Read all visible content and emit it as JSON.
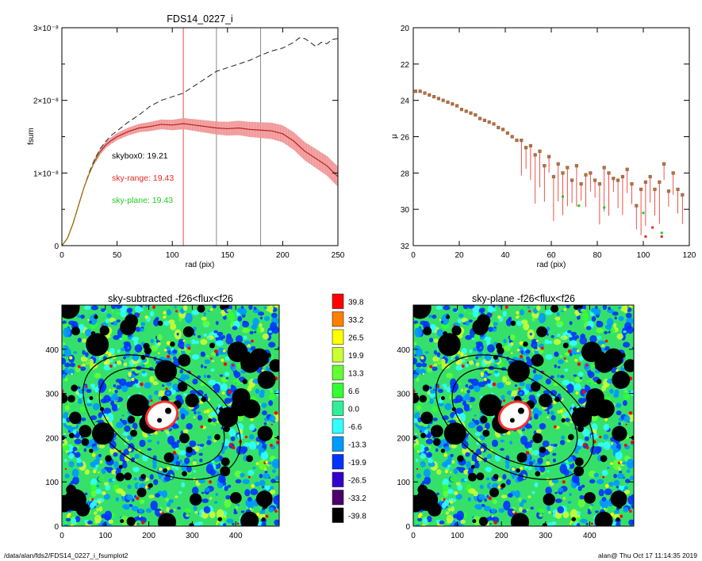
{
  "footer": {
    "path": "/data/alan/fds2/FDS14_0227_i_fsumplot2",
    "stamp": "alan@  Thu Oct 17 11:14:35 2019"
  },
  "colors": {
    "profile": "#b22222",
    "error_band": "#f4a3a3",
    "sky_range": "#e8281e",
    "sky_plane": "#22cc22",
    "marker_orange": "#d2691e",
    "marker_gray": "#707070"
  },
  "chart_data": [
    {
      "id": "fsum",
      "type": "line",
      "title": "FDS14_0227_i",
      "xlabel": "rad (pix)",
      "ylabel": "fsum",
      "xlim": [
        0,
        250
      ],
      "ylim": [
        0,
        3e-08
      ],
      "xticks": [
        "0",
        "50",
        "100",
        "150",
        "200",
        "250"
      ],
      "yticks": [
        "0",
        "1×10⁻⁸",
        "2×10⁻⁸",
        "3×10⁻⁸"
      ],
      "vlines": [
        {
          "x": 110,
          "color": "red"
        },
        {
          "x": 140,
          "color": "gray"
        },
        {
          "x": 180,
          "color": "gray"
        }
      ],
      "annotations": [
        {
          "text": "skybox0: 19.21",
          "color": "black"
        },
        {
          "text": "sky-range: 19.43",
          "color": "red"
        },
        {
          "text": "sky-plane: 19.43",
          "color": "green"
        }
      ],
      "series": [
        {
          "style": "dashed",
          "x": [
            0,
            5,
            10,
            15,
            20,
            25,
            30,
            35,
            40,
            45,
            50,
            60,
            70,
            80,
            90,
            100,
            110,
            120,
            130,
            140,
            150,
            160,
            170,
            180,
            190,
            200,
            210,
            215,
            220,
            225,
            230,
            235,
            240,
            245,
            250
          ],
          "y": [
            0,
            1e-09,
            3e-09,
            5.5e-09,
            8e-09,
            1.02e-08,
            1.2e-08,
            1.34e-08,
            1.44e-08,
            1.52e-08,
            1.58e-08,
            1.7e-08,
            1.8e-08,
            1.92e-08,
            2e-08,
            2.05e-08,
            2.1e-08,
            2.2e-08,
            2.3e-08,
            2.4e-08,
            2.45e-08,
            2.5e-08,
            2.55e-08,
            2.62e-08,
            2.68e-08,
            2.72e-08,
            2.8e-08,
            2.86e-08,
            2.85e-08,
            2.8e-08,
            2.74e-08,
            2.8e-08,
            2.78e-08,
            2.84e-08,
            2.85e-08
          ]
        },
        {
          "style": "solid",
          "x": [
            0,
            5,
            10,
            15,
            20,
            25,
            30,
            35,
            40,
            45,
            50,
            60,
            70,
            80,
            90,
            100,
            110,
            120,
            130,
            140,
            150,
            160,
            170,
            180,
            190,
            200,
            210,
            220,
            230,
            240,
            250
          ],
          "y": [
            0,
            1e-09,
            3e-09,
            5.5e-09,
            8e-09,
            1e-08,
            1.17e-08,
            1.3e-08,
            1.39e-08,
            1.45e-08,
            1.5e-08,
            1.57e-08,
            1.62e-08,
            1.64e-08,
            1.67e-08,
            1.66e-08,
            1.68e-08,
            1.66e-08,
            1.64e-08,
            1.62e-08,
            1.61e-08,
            1.62e-08,
            1.6e-08,
            1.59e-08,
            1.58e-08,
            1.54e-08,
            1.44e-08,
            1.3e-08,
            1.2e-08,
            1.1e-08,
            9.5e-09
          ]
        }
      ]
    },
    {
      "id": "mu",
      "type": "scatter",
      "xlabel": "rad (pix)",
      "ylabel": "μ",
      "xlim": [
        0,
        120
      ],
      "ylim": [
        32,
        20
      ],
      "xticks": [
        "0",
        "20",
        "40",
        "60",
        "80",
        "100",
        "120"
      ],
      "yticks": [
        "20",
        "22",
        "24",
        "26",
        "28",
        "30",
        "32"
      ],
      "points": [
        [
          1,
          23.5
        ],
        [
          3,
          23.5
        ],
        [
          5,
          23.6
        ],
        [
          7,
          23.7
        ],
        [
          9,
          23.8
        ],
        [
          11,
          23.9
        ],
        [
          13,
          24.0
        ],
        [
          15,
          24.1
        ],
        [
          17,
          24.2
        ],
        [
          19,
          24.3
        ],
        [
          21,
          24.5
        ],
        [
          23,
          24.6
        ],
        [
          25,
          24.7
        ],
        [
          27,
          24.8
        ],
        [
          29,
          25.0
        ],
        [
          31,
          25.1
        ],
        [
          33,
          25.2
        ],
        [
          35,
          25.3
        ],
        [
          37,
          25.5
        ],
        [
          39,
          25.6
        ],
        [
          41,
          25.8
        ],
        [
          43,
          26.0
        ],
        [
          45,
          26.2
        ],
        [
          47,
          26.2
        ],
        [
          49,
          26.6
        ],
        [
          51,
          26.5
        ],
        [
          53,
          27.0
        ],
        [
          55,
          26.8
        ],
        [
          57,
          27.6
        ],
        [
          59,
          27.1
        ],
        [
          61,
          28.2
        ],
        [
          63,
          27.5
        ],
        [
          65,
          28.0
        ],
        [
          67,
          27.7
        ],
        [
          69,
          28.4
        ],
        [
          71,
          27.6
        ],
        [
          73,
          28.6
        ],
        [
          75,
          28.1
        ],
        [
          77,
          28.0
        ],
        [
          79,
          28.4
        ],
        [
          81,
          28.6
        ],
        [
          83,
          27.7
        ],
        [
          85,
          28.0
        ],
        [
          87,
          28.3
        ],
        [
          89,
          28.4
        ],
        [
          91,
          28.2
        ],
        [
          93,
          27.8
        ],
        [
          95,
          28.6
        ],
        [
          97,
          29.8
        ],
        [
          99,
          28.9
        ],
        [
          101,
          28.5
        ],
        [
          103,
          28.2
        ],
        [
          105,
          28.9
        ],
        [
          107,
          28.5
        ],
        [
          109,
          27.5
        ],
        [
          111,
          29.0
        ],
        [
          113,
          28.0
        ],
        [
          115,
          28.9
        ],
        [
          117,
          29.2
        ]
      ],
      "points_green": [
        [
          65,
          29.3
        ],
        [
          72,
          29.8
        ],
        [
          83,
          29.9
        ],
        [
          100,
          30.2
        ],
        [
          108,
          31.3
        ]
      ],
      "points_red": [
        [
          101,
          31.5
        ],
        [
          104,
          31.0
        ],
        [
          108,
          31.5
        ]
      ]
    },
    {
      "id": "sky-subtracted",
      "type": "heatmap",
      "title": "sky-subtracted -f26<flux<f26",
      "xlim": [
        0,
        500
      ],
      "ylim": [
        0,
        500
      ],
      "xticks": [
        "0",
        "100",
        "200",
        "300",
        "400"
      ],
      "yticks": [
        "0",
        "100",
        "200",
        "300",
        "400"
      ]
    },
    {
      "id": "sky-plane",
      "type": "heatmap",
      "title": "sky-plane -f26<flux<f26",
      "xlim": [
        0,
        500
      ],
      "ylim": [
        0,
        500
      ],
      "xticks": [
        "0",
        "100",
        "200",
        "300",
        "400"
      ],
      "yticks": [
        "0",
        "100",
        "200",
        "300",
        "400"
      ]
    }
  ],
  "colorbar": {
    "levels": [
      "39.8",
      "33.2",
      "26.5",
      "19.9",
      "13.3",
      "6.6",
      "0.0",
      "-6.6",
      "-13.3",
      "-19.9",
      "-26.5",
      "-33.2",
      "-39.8"
    ],
    "colors": [
      "#ff0000",
      "#ff8000",
      "#ffff00",
      "#ccff33",
      "#66ff33",
      "#33ff33",
      "#33ee99",
      "#33ffff",
      "#0099ff",
      "#0033ff",
      "#3300cc",
      "#4b006b",
      "#000000"
    ]
  }
}
